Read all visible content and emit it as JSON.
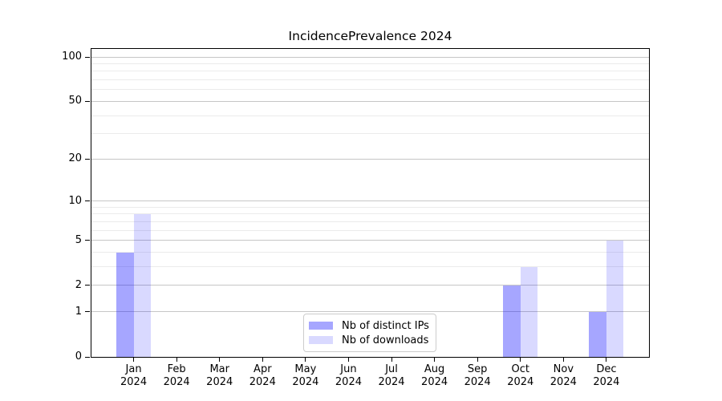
{
  "chart_data": {
    "type": "bar",
    "title": "IncidencePrevalence 2024",
    "months": [
      "Jan",
      "Feb",
      "Mar",
      "Apr",
      "May",
      "Jun",
      "Jul",
      "Aug",
      "Sep",
      "Oct",
      "Nov",
      "Dec"
    ],
    "year": "2024",
    "series": [
      {
        "name": "Nb of distinct IPs",
        "color": "rgba(0,0,255,0.35)",
        "values": [
          4,
          0,
          0,
          0,
          0,
          0,
          0,
          0,
          0,
          2,
          0,
          1
        ]
      },
      {
        "name": "Nb of downloads",
        "color": "rgba(0,0,255,0.15)",
        "values": [
          8,
          0,
          0,
          0,
          0,
          0,
          0,
          0,
          0,
          3,
          0,
          5
        ]
      }
    ],
    "yscale": "log1p",
    "ylim": [
      0,
      114
    ],
    "y_major_ticks": [
      0,
      1,
      2,
      5,
      10,
      20,
      50,
      100
    ],
    "y_minor_gridlines": [
      3,
      4,
      6,
      7,
      8,
      9,
      30,
      40,
      60,
      70,
      80,
      90
    ],
    "grid": "horizontal-only",
    "legend_position": "lower center",
    "colors": {
      "grid_major": "#c6c6c6",
      "grid_minor": "#ebebeb",
      "axis": "#000000",
      "text": "#000000",
      "background": "#ffffff"
    }
  }
}
